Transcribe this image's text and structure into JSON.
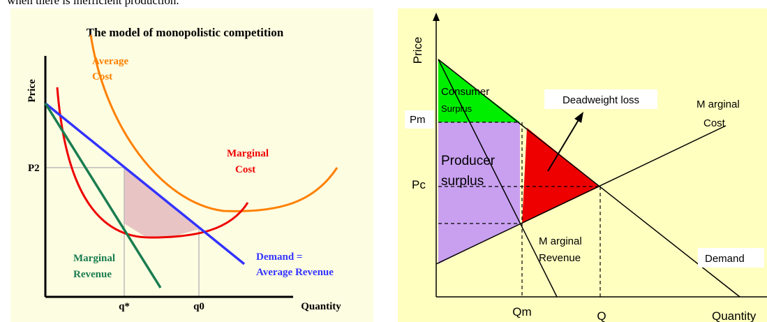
{
  "caption": "when there is inefficient production.",
  "left": {
    "title": "The model of monopolistic competition",
    "y_axis": "Price",
    "x_axis": "Quantity",
    "price_label": "P2",
    "q_star": "q*",
    "q0": "q0",
    "average_cost": [
      "Average",
      "Cost"
    ],
    "marginal_cost": [
      "Marginal",
      "Cost"
    ],
    "marginal_revenue": [
      "Marginal",
      "Revenue"
    ],
    "demand": [
      "Demand =",
      "Average Revenue"
    ]
  },
  "right": {
    "y_axis": "Price",
    "x_axis": "Quantity",
    "pm": "Pm",
    "pc": "Pc",
    "qm": "Qm",
    "q": "Q",
    "consumer_surplus": [
      "Consumer",
      "Surplus"
    ],
    "producer_surplus": [
      "Producer",
      "surplus"
    ],
    "deadweight_loss": "Deadweight loss",
    "marginal_cost": [
      "M arginal",
      "Cost"
    ],
    "marginal_revenue": [
      "M arginal",
      "Revenue"
    ],
    "demand": "Demand"
  }
}
